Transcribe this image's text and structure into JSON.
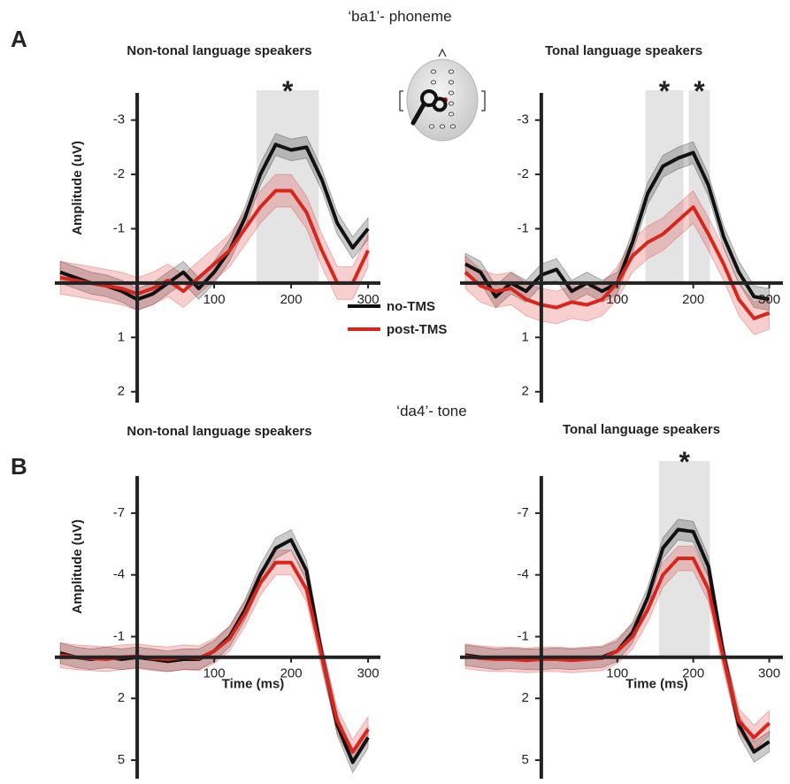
{
  "sections": [
    {
      "letter": "A",
      "title": "‘ba1’- phoneme"
    },
    {
      "letter": "B",
      "title": "‘da4’- tone"
    }
  ],
  "chart_data": [
    {
      "type": "line",
      "title": "Non-tonal language speakers",
      "ylabel": "Amplitude (uV)",
      "x": [
        -100,
        -80,
        -60,
        -40,
        -20,
        0,
        20,
        40,
        60,
        80,
        100,
        120,
        140,
        160,
        180,
        200,
        220,
        240,
        260,
        280,
        300
      ],
      "xlim": [
        -107,
        316
      ],
      "ylim": [
        -3.5,
        2.2
      ],
      "invert_y": true,
      "xticks": [
        100,
        200,
        300
      ],
      "yticks": [
        -3,
        -2,
        -1,
        1,
        2
      ],
      "shaded": [
        {
          "range": [
            155,
            236
          ],
          "label": "*"
        }
      ],
      "series": [
        {
          "name": "no-TMS",
          "color": "#111111",
          "error": 0.2,
          "values": [
            -0.2,
            -0.1,
            0,
            0.05,
            0.15,
            0.3,
            0.2,
            0,
            -0.2,
            0.1,
            -0.2,
            -0.6,
            -1.2,
            -2.0,
            -2.55,
            -2.45,
            -2.5,
            -1.9,
            -1.1,
            -0.65,
            -1.0
          ]
        },
        {
          "name": "post-TMS",
          "color": "#d7261e",
          "error": 0.3,
          "values": [
            -0.1,
            -0.05,
            0,
            0.05,
            0.1,
            0.2,
            0.1,
            -0.05,
            0.15,
            -0.1,
            -0.35,
            -0.6,
            -1.0,
            -1.4,
            -1.7,
            -1.7,
            -1.3,
            -0.6,
            0,
            0,
            -0.6
          ]
        }
      ]
    },
    {
      "type": "line",
      "title": "Tonal language speakers",
      "x": [
        -100,
        -80,
        -60,
        -40,
        -20,
        0,
        20,
        40,
        60,
        80,
        100,
        120,
        140,
        160,
        180,
        200,
        220,
        240,
        260,
        280,
        300
      ],
      "xlim": [
        -107,
        318
      ],
      "ylim": [
        -3.5,
        2.2
      ],
      "invert_y": true,
      "xticks": [
        100,
        200,
        300
      ],
      "yticks": [
        -3,
        -2,
        -1,
        1,
        2
      ],
      "shaded": [
        {
          "range": [
            137,
            187
          ],
          "label": "*"
        },
        {
          "range": [
            194,
            222
          ],
          "label": "*"
        }
      ],
      "series": [
        {
          "color": "#111111",
          "error": 0.2,
          "values": [
            -0.35,
            -0.2,
            0.25,
            0,
            0.15,
            -0.15,
            -0.25,
            0.15,
            0,
            0.15,
            0,
            -0.75,
            -1.65,
            -2.15,
            -2.3,
            -2.4,
            -1.8,
            -0.85,
            -0.2,
            0.25,
            0.3
          ]
        },
        {
          "color": "#d7261e",
          "error": 0.3,
          "values": [
            -0.2,
            0.05,
            0.15,
            0.1,
            0.3,
            0.4,
            0.45,
            0.35,
            0.4,
            0.3,
            0,
            -0.5,
            -0.75,
            -0.9,
            -1.15,
            -1.4,
            -0.9,
            -0.35,
            0.3,
            0.65,
            0.55
          ]
        }
      ]
    },
    {
      "type": "line",
      "title": "Non-tonal language speakers",
      "ylabel": "Amplitude (uV)",
      "xlabel": "Time (ms)",
      "x": [
        -100,
        -80,
        -60,
        -40,
        -20,
        0,
        20,
        40,
        60,
        80,
        100,
        120,
        140,
        160,
        180,
        200,
        220,
        240,
        260,
        280,
        300
      ],
      "xlim": [
        -107,
        316
      ],
      "ylim": [
        -8.8,
        5.9
      ],
      "invert_y": true,
      "xticks": [
        100,
        200,
        300
      ],
      "yticks": [
        -7,
        -4,
        -1,
        2,
        5
      ],
      "shaded": [],
      "series": [
        {
          "color": "#111111",
          "error": 0.5,
          "values": [
            -0.2,
            0,
            0.1,
            0,
            0.1,
            0,
            0.1,
            0.2,
            0.1,
            0.1,
            -0.3,
            -1.0,
            -2.3,
            -4.0,
            -5.3,
            -5.7,
            -4.2,
            -0.1,
            3.3,
            5.1,
            3.9
          ]
        },
        {
          "color": "#d7261e",
          "error": 0.6,
          "values": [
            -0.1,
            0,
            0.05,
            0.1,
            0,
            -0.05,
            0.05,
            0.1,
            0,
            0.05,
            -0.3,
            -0.9,
            -2.1,
            -3.6,
            -4.6,
            -4.6,
            -3.3,
            0,
            3.1,
            4.6,
            3.5
          ]
        }
      ]
    },
    {
      "type": "line",
      "title": "Tonal language speakers",
      "xlabel": "Time (ms)",
      "x": [
        -100,
        -80,
        -60,
        -40,
        -20,
        0,
        20,
        40,
        60,
        80,
        100,
        120,
        140,
        160,
        180,
        200,
        220,
        240,
        260,
        280,
        300
      ],
      "xlim": [
        -107,
        318
      ],
      "ylim": [
        -8.8,
        5.9
      ],
      "invert_y": true,
      "xticks": [
        100,
        200,
        300
      ],
      "yticks": [
        -7,
        -4,
        -1,
        2,
        5
      ],
      "shaded": [
        {
          "range": [
            155,
            222
          ],
          "label": "*"
        }
      ],
      "series": [
        {
          "color": "#111111",
          "error": 0.5,
          "values": [
            -0.1,
            0,
            0.1,
            0.05,
            0.1,
            0.1,
            0.05,
            0.1,
            0.05,
            0,
            -0.3,
            -1.2,
            -2.9,
            -5.3,
            -6.2,
            -6.1,
            -4.4,
            -0.1,
            3.3,
            4.6,
            4.1
          ]
        },
        {
          "color": "#d7261e",
          "error": 0.6,
          "values": [
            -0.05,
            0.05,
            0.1,
            0.1,
            0.15,
            0.1,
            0.1,
            0.15,
            0.1,
            0.05,
            -0.3,
            -1.0,
            -2.3,
            -4.0,
            -4.8,
            -4.8,
            -3.3,
            0.1,
            3.1,
            3.9,
            3.2
          ]
        }
      ]
    }
  ]
}
